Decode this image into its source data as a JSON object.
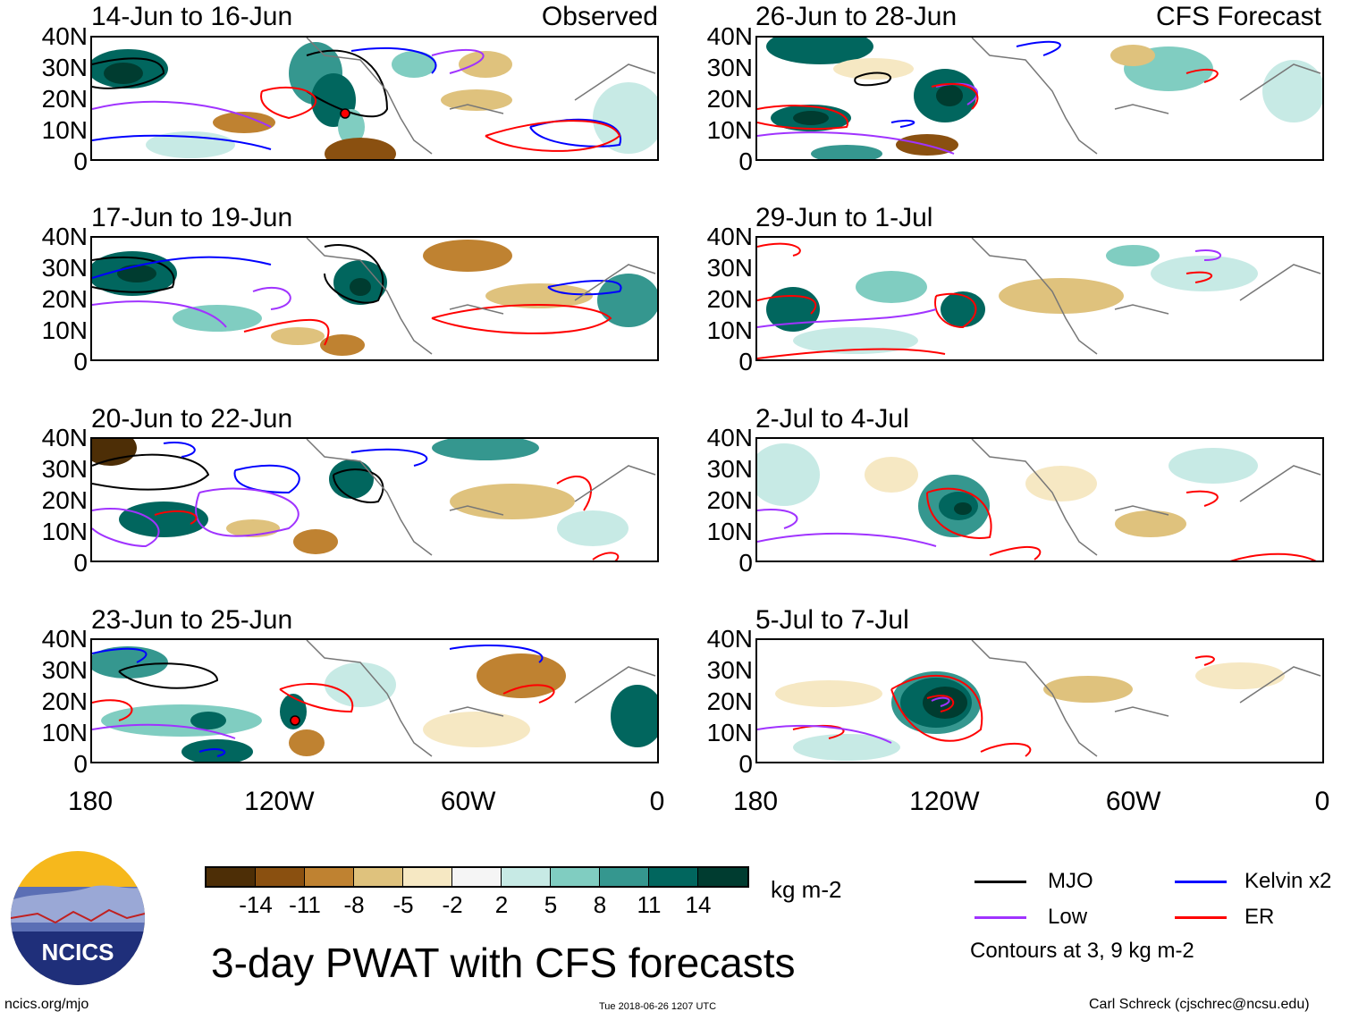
{
  "panels": {
    "observed_tag": "Observed",
    "forecast_tag": "CFS Forecast",
    "observed": [
      "14-Jun to 16-Jun",
      "17-Jun to 19-Jun",
      "20-Jun to 22-Jun",
      "23-Jun to 25-Jun"
    ],
    "forecast": [
      "26-Jun to 28-Jun",
      "29-Jun to 1-Jul",
      "2-Jul to 4-Jul",
      "5-Jul to 7-Jul"
    ]
  },
  "axes": {
    "lat_labels": [
      "40N",
      "30N",
      "20N",
      "10N",
      "0"
    ],
    "lon_labels": [
      "180",
      "120W",
      "60W",
      "0"
    ]
  },
  "colorbar": {
    "labels": [
      "-14",
      "-11",
      "-8",
      "-5",
      "-2",
      "2",
      "5",
      "8",
      "11",
      "14"
    ],
    "colors": [
      "#4d2e06",
      "#8a5010",
      "#bf8231",
      "#dfc27d",
      "#f6e8c3",
      "#f5f5f5",
      "#c7eae5",
      "#80cdc1",
      "#35978f",
      "#01665e",
      "#003c30"
    ],
    "units": "kg m-2"
  },
  "title": "3-day PWAT with CFS forecasts",
  "legend": {
    "items": [
      {
        "label": "MJO",
        "color": "#000000"
      },
      {
        "label": "Kelvin x2",
        "color": "#0000ff"
      },
      {
        "label": "Low",
        "color": "#a033ff"
      },
      {
        "label": "ER",
        "color": "#ff0000"
      }
    ],
    "note": "Contours at 3, 9 kg m-2"
  },
  "footer": {
    "left": "ncics.org/mjo",
    "center": "Tue 2018-06-26 1207 UTC",
    "right": "Carl Schreck (cjschrec@ncsu.edu)"
  },
  "logo": {
    "text": "NCICS"
  }
}
